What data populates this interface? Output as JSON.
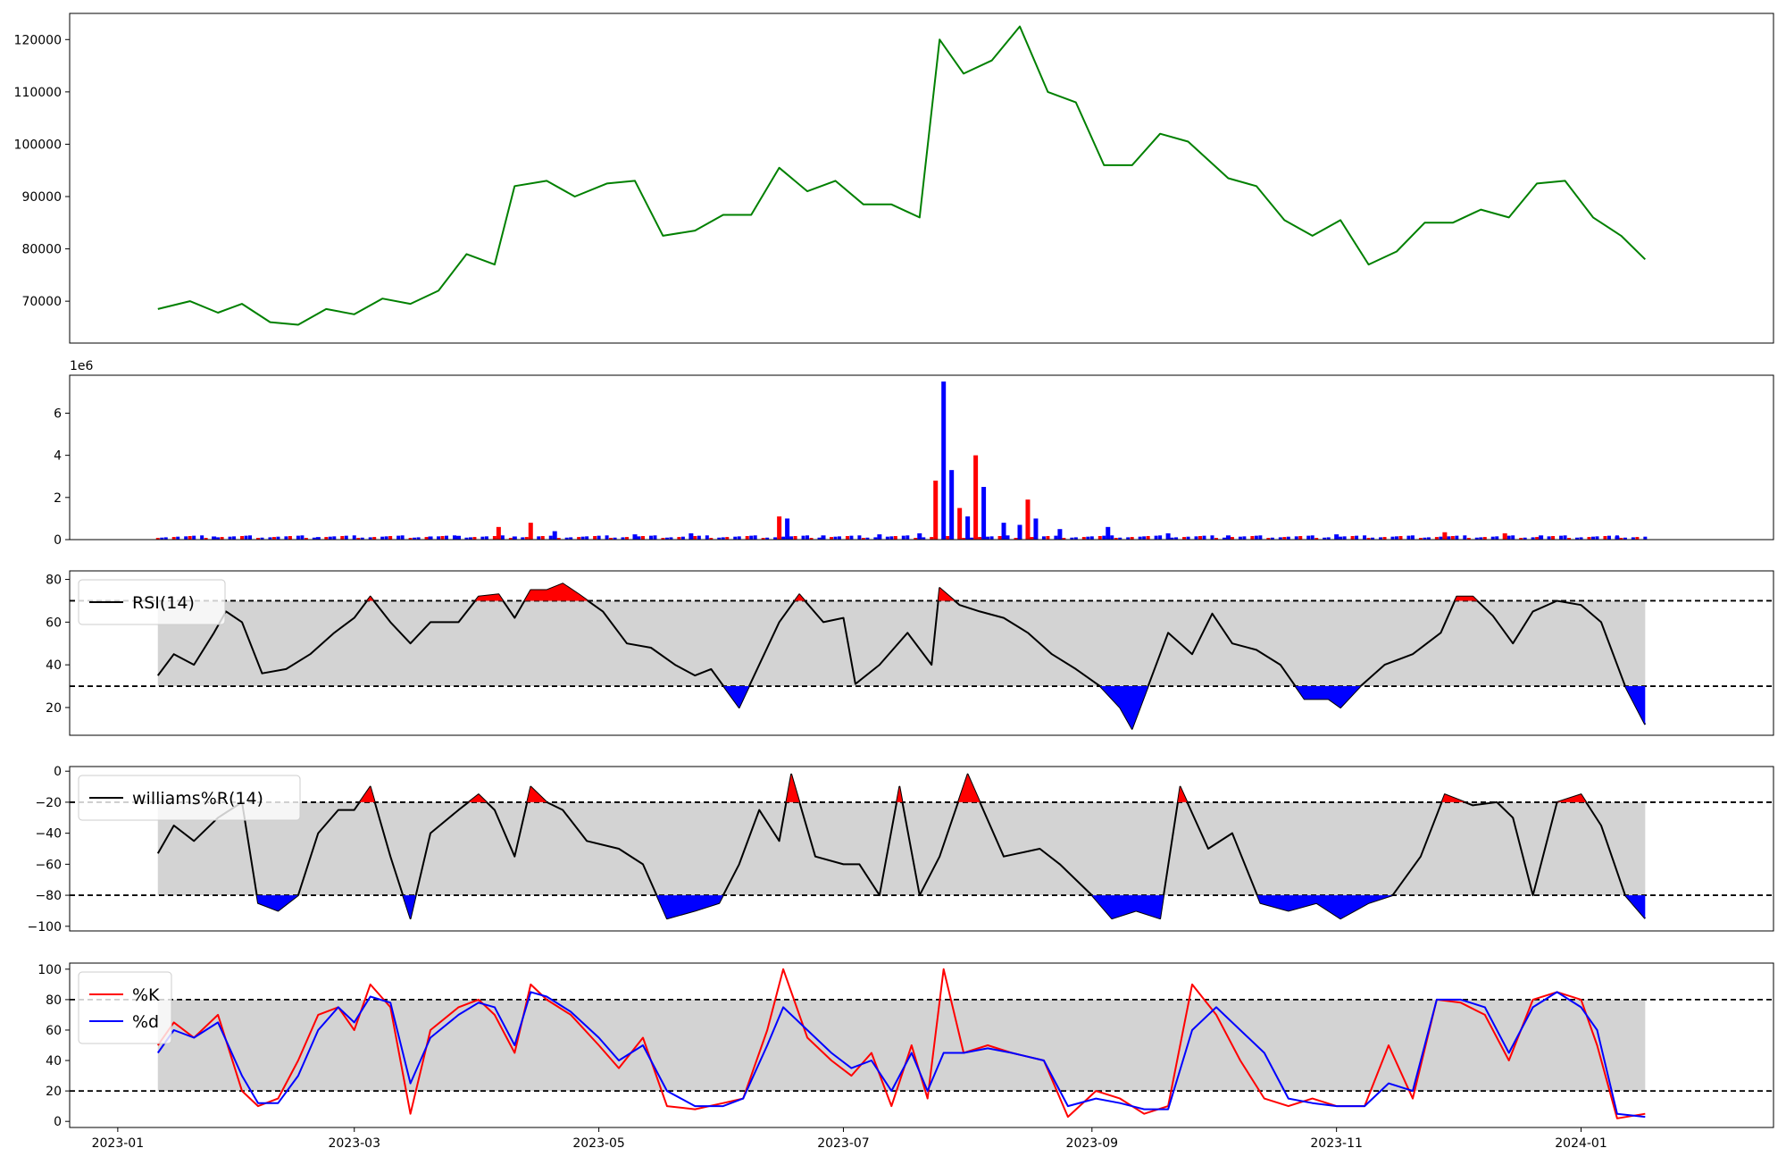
{
  "chart_data": [
    {
      "type": "line",
      "panel": "price",
      "ylim": [
        62000,
        125000
      ],
      "yticks": [
        70000,
        80000,
        90000,
        100000,
        110000,
        120000
      ],
      "colors": {
        "line": "#008000"
      },
      "x": [
        "2023-01-11",
        "2023-01-19",
        "2023-01-26",
        "2023-02-01",
        "2023-02-08",
        "2023-02-15",
        "2023-02-22",
        "2023-03-01",
        "2023-03-08",
        "2023-03-15",
        "2023-03-22",
        "2023-03-29",
        "2023-04-05",
        "2023-04-10",
        "2023-04-18",
        "2023-04-25",
        "2023-05-03",
        "2023-05-10",
        "2023-05-17",
        "2023-05-25",
        "2023-06-01",
        "2023-06-08",
        "2023-06-15",
        "2023-06-22",
        "2023-06-29",
        "2023-07-06",
        "2023-07-13",
        "2023-07-20",
        "2023-07-25",
        "2023-07-31",
        "2023-08-07",
        "2023-08-14",
        "2023-08-21",
        "2023-08-28",
        "2023-09-04",
        "2023-09-11",
        "2023-09-18",
        "2023-09-25",
        "2023-10-05",
        "2023-10-12",
        "2023-10-19",
        "2023-10-26",
        "2023-11-02",
        "2023-11-09",
        "2023-11-16",
        "2023-11-23",
        "2023-11-30",
        "2023-12-07",
        "2023-12-14",
        "2023-12-21",
        "2023-12-28",
        "2024-01-04",
        "2024-01-11",
        "2024-01-17"
      ],
      "series": [
        {
          "values": [
            68500,
            70000,
            67800,
            69500,
            66000,
            65500,
            68500,
            67500,
            70500,
            69500,
            72000,
            79000,
            77000,
            92000,
            93000,
            90000,
            92500,
            93000,
            82500,
            83500,
            86500,
            86500,
            95500,
            91000,
            93000,
            88500,
            88500,
            86000,
            120000,
            113500,
            116000,
            122500,
            110000,
            108000,
            96000,
            96000,
            102000,
            100500,
            93500,
            92000,
            85500,
            82500,
            85500,
            77000,
            79500,
            85000,
            85000,
            87500,
            86000,
            92500,
            93000,
            86000,
            82500,
            78000
          ]
        }
      ]
    },
    {
      "type": "bar",
      "panel": "volume",
      "ylim": [
        0,
        7800000
      ],
      "yticks": [
        0,
        2000000,
        4000000,
        6000000
      ],
      "scale_label": "1e6",
      "colors": {
        "up": "#ff0000",
        "down": "#0000ff"
      },
      "x": [
        "2023-01-25",
        "2023-02-20",
        "2023-03-20",
        "2023-03-27",
        "2023-04-06",
        "2023-04-10",
        "2023-04-14",
        "2023-04-20",
        "2023-05-10",
        "2023-05-24",
        "2023-06-15",
        "2023-06-17",
        "2023-06-26",
        "2023-07-10",
        "2023-07-20",
        "2023-07-24",
        "2023-07-26",
        "2023-07-28",
        "2023-07-30",
        "2023-08-01",
        "2023-08-03",
        "2023-08-05",
        "2023-08-10",
        "2023-08-14",
        "2023-08-16",
        "2023-08-18",
        "2023-08-24",
        "2023-09-05",
        "2023-09-20",
        "2023-10-05",
        "2023-11-01",
        "2023-11-28",
        "2023-12-13",
        "2023-12-22",
        "2024-01-10"
      ],
      "series": [
        {
          "values": [
            150000,
            120000,
            150000,
            180000,
            600000,
            150000,
            800000,
            400000,
            250000,
            300000,
            1100000,
            1000000,
            200000,
            250000,
            300000,
            2800000,
            7500000,
            3300000,
            1500000,
            1100000,
            4000000,
            2500000,
            800000,
            700000,
            1900000,
            1000000,
            500000,
            600000,
            300000,
            200000,
            250000,
            350000,
            300000,
            200000,
            150000
          ],
          "up": [
            false,
            false,
            false,
            false,
            true,
            false,
            true,
            false,
            false,
            false,
            true,
            false,
            false,
            false,
            false,
            true,
            false,
            false,
            true,
            false,
            true,
            false,
            false,
            false,
            true,
            false,
            false,
            false,
            false,
            false,
            false,
            true,
            true,
            false,
            false
          ]
        }
      ]
    },
    {
      "type": "line",
      "panel": "rsi",
      "ylim": [
        7,
        84
      ],
      "yticks": [
        20,
        40,
        60,
        80
      ],
      "thresholds": [
        30,
        70
      ],
      "legend": "RSI(14)",
      "legend_position": "upper-left",
      "colors": {
        "line": "#000000",
        "overbought": "#ff0000",
        "oversold": "#0000ff",
        "band": "#d3d3d3"
      },
      "x": [
        "2023-01-11",
        "2023-01-15",
        "2023-01-20",
        "2023-01-25",
        "2023-01-28",
        "2023-02-01",
        "2023-02-06",
        "2023-02-12",
        "2023-02-18",
        "2023-02-24",
        "2023-03-01",
        "2023-03-05",
        "2023-03-10",
        "2023-03-15",
        "2023-03-20",
        "2023-03-27",
        "2023-04-01",
        "2023-04-06",
        "2023-04-10",
        "2023-04-14",
        "2023-04-18",
        "2023-04-22",
        "2023-04-26",
        "2023-05-02",
        "2023-05-08",
        "2023-05-14",
        "2023-05-20",
        "2023-05-25",
        "2023-05-29",
        "2023-06-05",
        "2023-06-10",
        "2023-06-15",
        "2023-06-20",
        "2023-06-26",
        "2023-07-01",
        "2023-07-04",
        "2023-07-10",
        "2023-07-17",
        "2023-07-23",
        "2023-07-25",
        "2023-07-30",
        "2023-08-04",
        "2023-08-10",
        "2023-08-16",
        "2023-08-22",
        "2023-08-28",
        "2023-09-03",
        "2023-09-08",
        "2023-09-11",
        "2023-09-15",
        "2023-09-20",
        "2023-09-26",
        "2023-10-01",
        "2023-10-06",
        "2023-10-12",
        "2023-10-18",
        "2023-10-24",
        "2023-10-30",
        "2023-11-02",
        "2023-11-07",
        "2023-11-13",
        "2023-11-20",
        "2023-11-27",
        "2023-12-01",
        "2023-12-05",
        "2023-12-10",
        "2023-12-15",
        "2023-12-20",
        "2023-12-26",
        "2024-01-01",
        "2024-01-06",
        "2024-01-12",
        "2024-01-17"
      ],
      "series": [
        {
          "name": "RSI(14)",
          "values": [
            35,
            45,
            40,
            55,
            65,
            60,
            36,
            38,
            45,
            55,
            62,
            72,
            60,
            50,
            60,
            60,
            72,
            73,
            62,
            75,
            75,
            78,
            73,
            65,
            50,
            48,
            40,
            35,
            38,
            20,
            40,
            60,
            73,
            60,
            62,
            31,
            40,
            55,
            40,
            76,
            68,
            65,
            62,
            55,
            45,
            38,
            30,
            20,
            10,
            30,
            55,
            45,
            64,
            50,
            47,
            40,
            24,
            24,
            20,
            30,
            40,
            45,
            55,
            72,
            72,
            63,
            50,
            65,
            70,
            68,
            60,
            30,
            12
          ]
        }
      ]
    },
    {
      "type": "line",
      "panel": "williams",
      "ylim": [
        -103,
        3
      ],
      "yticks": [
        -100,
        -80,
        -60,
        -40,
        -20,
        0
      ],
      "thresholds": [
        -80,
        -20
      ],
      "legend": "williams%R(14)",
      "legend_position": "upper-left",
      "colors": {
        "line": "#000000",
        "overbought": "#ff0000",
        "oversold": "#0000ff",
        "band": "#d3d3d3"
      },
      "x": [
        "2023-01-11",
        "2023-01-15",
        "2023-01-20",
        "2023-01-26",
        "2023-02-01",
        "2023-02-05",
        "2023-02-10",
        "2023-02-15",
        "2023-02-20",
        "2023-02-25",
        "2023-03-01",
        "2023-03-05",
        "2023-03-10",
        "2023-03-15",
        "2023-03-20",
        "2023-03-27",
        "2023-04-01",
        "2023-04-05",
        "2023-04-10",
        "2023-04-14",
        "2023-04-18",
        "2023-04-22",
        "2023-04-28",
        "2023-05-06",
        "2023-05-12",
        "2023-05-18",
        "2023-05-25",
        "2023-05-31",
        "2023-06-05",
        "2023-06-10",
        "2023-06-15",
        "2023-06-18",
        "2023-06-24",
        "2023-07-01",
        "2023-07-05",
        "2023-07-10",
        "2023-07-15",
        "2023-07-20",
        "2023-07-25",
        "2023-08-01",
        "2023-08-10",
        "2023-08-19",
        "2023-08-24",
        "2023-09-01",
        "2023-09-06",
        "2023-09-12",
        "2023-09-18",
        "2023-09-23",
        "2023-09-30",
        "2023-10-06",
        "2023-10-13",
        "2023-10-20",
        "2023-10-27",
        "2023-11-02",
        "2023-11-09",
        "2023-11-15",
        "2023-11-22",
        "2023-11-28",
        "2023-12-05",
        "2023-12-11",
        "2023-12-15",
        "2023-12-20",
        "2023-12-26",
        "2024-01-01",
        "2024-01-06",
        "2024-01-12",
        "2024-01-17"
      ],
      "series": [
        {
          "name": "williams%R(14)",
          "values": [
            -53,
            -35,
            -45,
            -30,
            -20,
            -85,
            -90,
            -80,
            -40,
            -25,
            -25,
            -10,
            -55,
            -95,
            -40,
            -25,
            -15,
            -25,
            -55,
            -10,
            -20,
            -25,
            -45,
            -50,
            -60,
            -95,
            -90,
            -85,
            -60,
            -25,
            -45,
            -2,
            -55,
            -60,
            -60,
            -80,
            -10,
            -80,
            -55,
            -2,
            -55,
            -50,
            -60,
            -80,
            -95,
            -90,
            -95,
            -10,
            -50,
            -40,
            -85,
            -90,
            -85,
            -95,
            -85,
            -80,
            -55,
            -15,
            -22,
            -20,
            -30,
            -80,
            -20,
            -15,
            -35,
            -80,
            -95
          ]
        }
      ]
    },
    {
      "type": "line",
      "panel": "stochastic",
      "ylim": [
        -4,
        104
      ],
      "yticks": [
        0,
        20,
        40,
        60,
        80,
        100
      ],
      "thresholds": [
        20,
        80
      ],
      "legend_position": "upper-left",
      "colors": {
        "k": "#ff0000",
        "d": "#0000ff",
        "band": "#d3d3d3"
      },
      "x": [
        "2023-01-11",
        "2023-01-15",
        "2023-01-20",
        "2023-01-26",
        "2023-02-01",
        "2023-02-05",
        "2023-02-10",
        "2023-02-15",
        "2023-02-20",
        "2023-02-25",
        "2023-03-01",
        "2023-03-05",
        "2023-03-10",
        "2023-03-15",
        "2023-03-20",
        "2023-03-27",
        "2023-04-01",
        "2023-04-05",
        "2023-04-10",
        "2023-04-14",
        "2023-04-18",
        "2023-04-24",
        "2023-05-01",
        "2023-05-06",
        "2023-05-12",
        "2023-05-18",
        "2023-05-25",
        "2023-06-01",
        "2023-06-06",
        "2023-06-12",
        "2023-06-16",
        "2023-06-22",
        "2023-06-28",
        "2023-07-03",
        "2023-07-08",
        "2023-07-13",
        "2023-07-18",
        "2023-07-22",
        "2023-07-26",
        "2023-07-31",
        "2023-08-06",
        "2023-08-12",
        "2023-08-20",
        "2023-08-26",
        "2023-09-02",
        "2023-09-08",
        "2023-09-14",
        "2023-09-20",
        "2023-09-26",
        "2023-10-02",
        "2023-10-08",
        "2023-10-14",
        "2023-10-20",
        "2023-10-26",
        "2023-11-01",
        "2023-11-08",
        "2023-11-14",
        "2023-11-20",
        "2023-11-26",
        "2023-12-02",
        "2023-12-08",
        "2023-12-14",
        "2023-12-20",
        "2023-12-26",
        "2024-01-01",
        "2024-01-05",
        "2024-01-10",
        "2024-01-17"
      ],
      "series": [
        {
          "name": "%K",
          "values": [
            50,
            65,
            55,
            70,
            20,
            10,
            15,
            40,
            70,
            75,
            60,
            90,
            75,
            5,
            60,
            75,
            80,
            70,
            45,
            90,
            80,
            70,
            50,
            35,
            55,
            10,
            8,
            12,
            15,
            60,
            100,
            55,
            40,
            30,
            45,
            10,
            50,
            15,
            100,
            45,
            50,
            45,
            40,
            3,
            20,
            15,
            5,
            10,
            90,
            70,
            40,
            15,
            10,
            15,
            10,
            10,
            50,
            15,
            80,
            78,
            70,
            40,
            80,
            85,
            80,
            50,
            2,
            5
          ]
        },
        {
          "name": "%d",
          "values": [
            45,
            60,
            55,
            65,
            30,
            12,
            12,
            30,
            60,
            75,
            65,
            82,
            78,
            25,
            55,
            70,
            78,
            75,
            50,
            85,
            82,
            72,
            55,
            40,
            50,
            20,
            10,
            10,
            15,
            50,
            75,
            60,
            45,
            35,
            40,
            20,
            45,
            20,
            45,
            45,
            48,
            45,
            40,
            10,
            15,
            12,
            8,
            8,
            60,
            75,
            60,
            45,
            15,
            12,
            10,
            10,
            25,
            20,
            80,
            80,
            75,
            45,
            75,
            85,
            75,
            60,
            5,
            3
          ]
        }
      ]
    }
  ],
  "x_axis": {
    "tick_dates": [
      "2023-01-01",
      "2023-03-01",
      "2023-05-01",
      "2023-07-01",
      "2023-09-01",
      "2023-11-01",
      "2024-01-01"
    ],
    "tick_labels": [
      "2023-01",
      "2023-03",
      "2023-05",
      "2023-07",
      "2023-09",
      "2023-11",
      "2024-01"
    ],
    "range": [
      "2022-12-20",
      "2024-02-18"
    ]
  }
}
